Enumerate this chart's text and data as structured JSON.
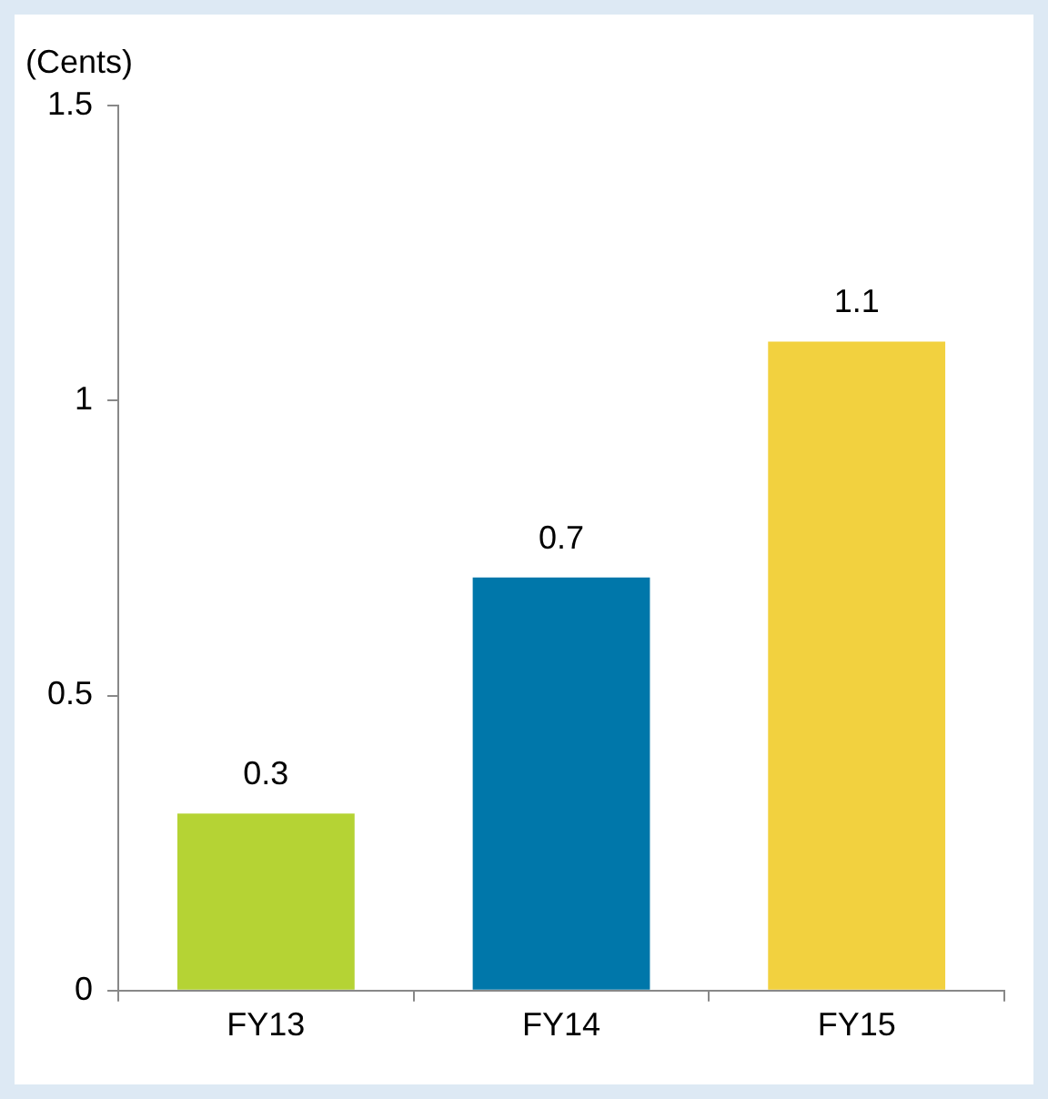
{
  "chart_data": {
    "type": "bar",
    "ylabel": "(Cents)",
    "categories": [
      "FY13",
      "FY14",
      "FY15"
    ],
    "values": [
      0.3,
      0.7,
      1.1
    ],
    "colors": [
      "#b5d334",
      "#0077aa",
      "#f2d13f"
    ],
    "ylim": [
      0,
      1.5
    ],
    "yticks": [
      0,
      0.5,
      1,
      1.5
    ],
    "grid": false,
    "legend": false,
    "data_labels": true
  }
}
